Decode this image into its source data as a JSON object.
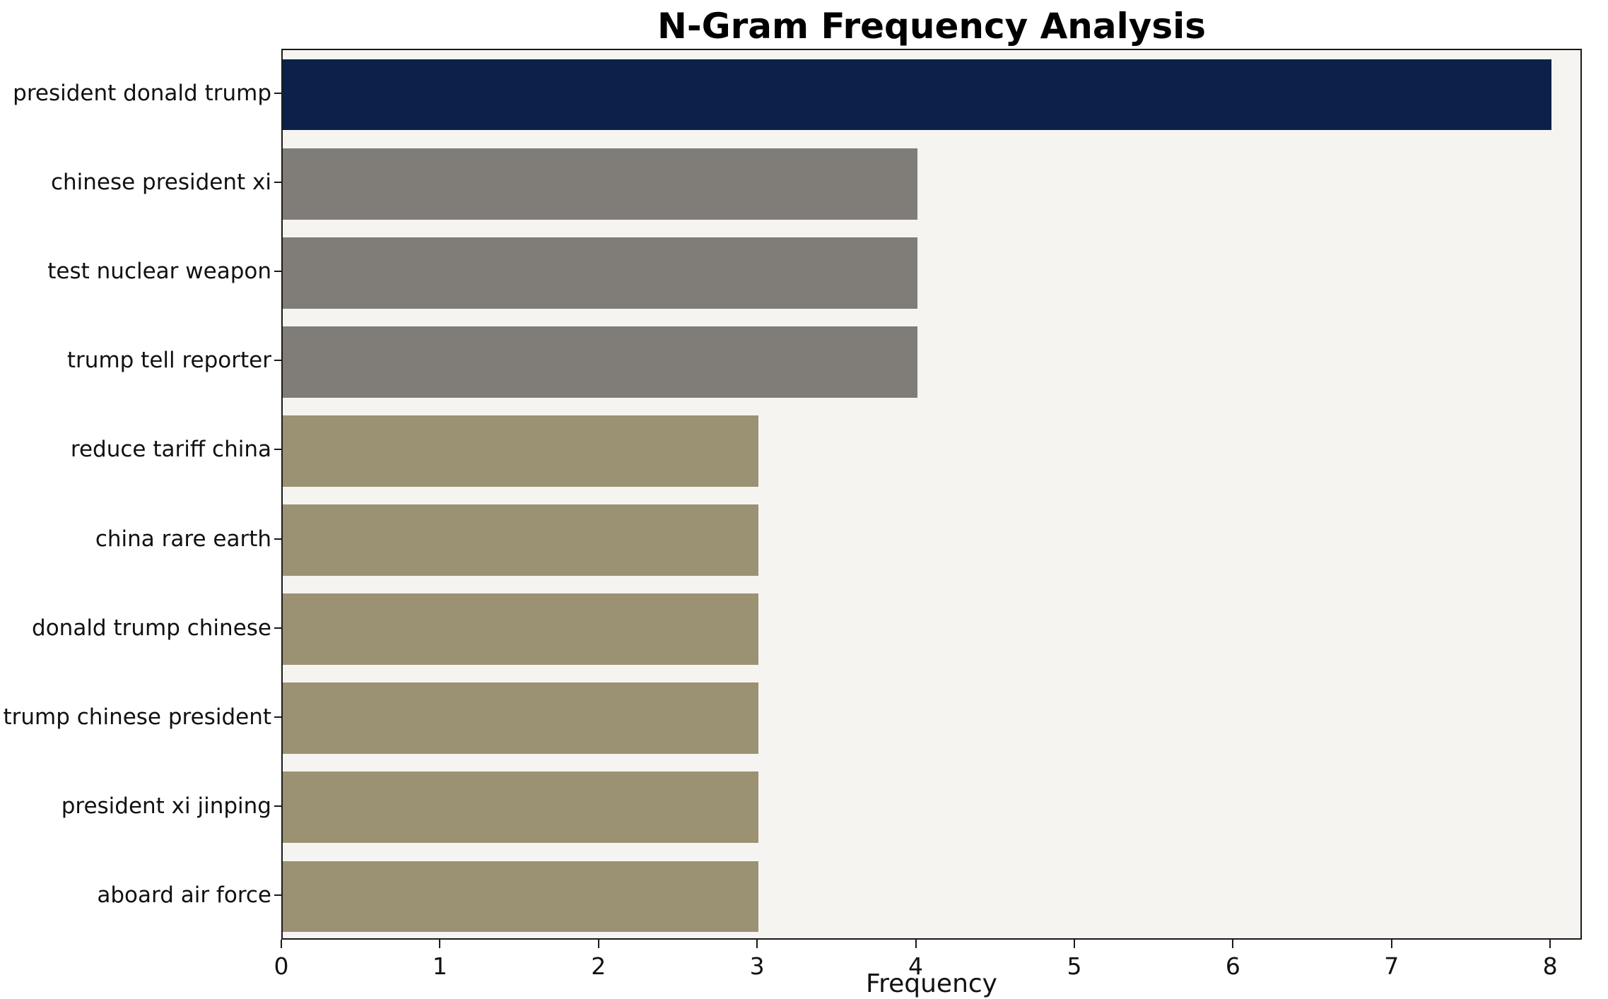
{
  "chart_data": {
    "type": "bar",
    "orientation": "horizontal",
    "title": "N-Gram Frequency Analysis",
    "xlabel": "Frequency",
    "ylabel": "",
    "categories": [
      "president donald trump",
      "chinese president xi",
      "test nuclear weapon",
      "trump tell reporter",
      "reduce tariff china",
      "china rare earth",
      "donald trump chinese",
      "trump chinese president",
      "president xi jinping",
      "aboard air force"
    ],
    "values": [
      8,
      4,
      4,
      4,
      3,
      3,
      3,
      3,
      3,
      3
    ],
    "bar_colors": [
      "#0c2149",
      "#807c77",
      "#807c77",
      "#807c77",
      "#9b9273",
      "#9b9273",
      "#9b9273",
      "#9b9273",
      "#9b9273",
      "#9b9273"
    ],
    "xlim": [
      0,
      8.2
    ],
    "xticks": [
      0,
      1,
      2,
      3,
      4,
      5,
      6,
      7,
      8
    ],
    "grid": false,
    "legend_position": "none",
    "plot_background": "#f5f4f1",
    "figure_background": "#ffffff",
    "bar_height_fraction": 0.8
  }
}
